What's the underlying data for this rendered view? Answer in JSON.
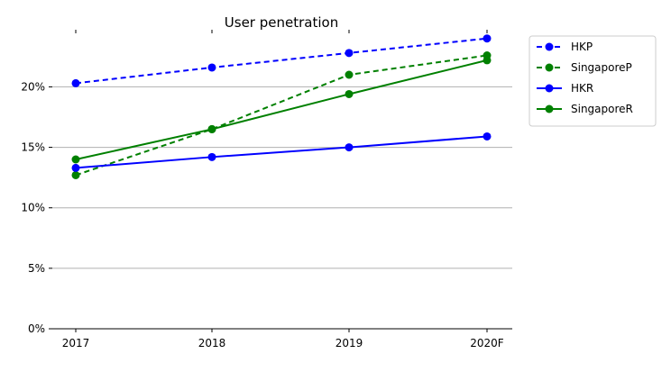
{
  "chart_data": {
    "type": "line",
    "title": "User penetration",
    "xlabel": "",
    "ylabel": "",
    "categories": [
      "2017",
      "2018",
      "2019",
      "2020F"
    ],
    "y_ticks": [
      "0%",
      "5%",
      "10%",
      "15%",
      "20%"
    ],
    "y_tick_values": [
      0,
      5,
      10,
      15,
      20
    ],
    "ylim": [
      0,
      24.5
    ],
    "grid": "horizontal",
    "legend_position": "outside-right",
    "series": [
      {
        "name": "HKP",
        "values": [
          20.3,
          21.6,
          22.8,
          24.0
        ],
        "color": "#0000ff",
        "dashed": true
      },
      {
        "name": "SingaporeP",
        "values": [
          12.7,
          16.5,
          21.0,
          22.6
        ],
        "color": "#008000",
        "dashed": true
      },
      {
        "name": "HKR",
        "values": [
          13.3,
          14.2,
          15.0,
          15.9
        ],
        "color": "#0000ff",
        "dashed": false
      },
      {
        "name": "SingaporeR",
        "values": [
          14.0,
          16.5,
          19.4,
          22.2
        ],
        "color": "#008000",
        "dashed": false
      }
    ]
  }
}
